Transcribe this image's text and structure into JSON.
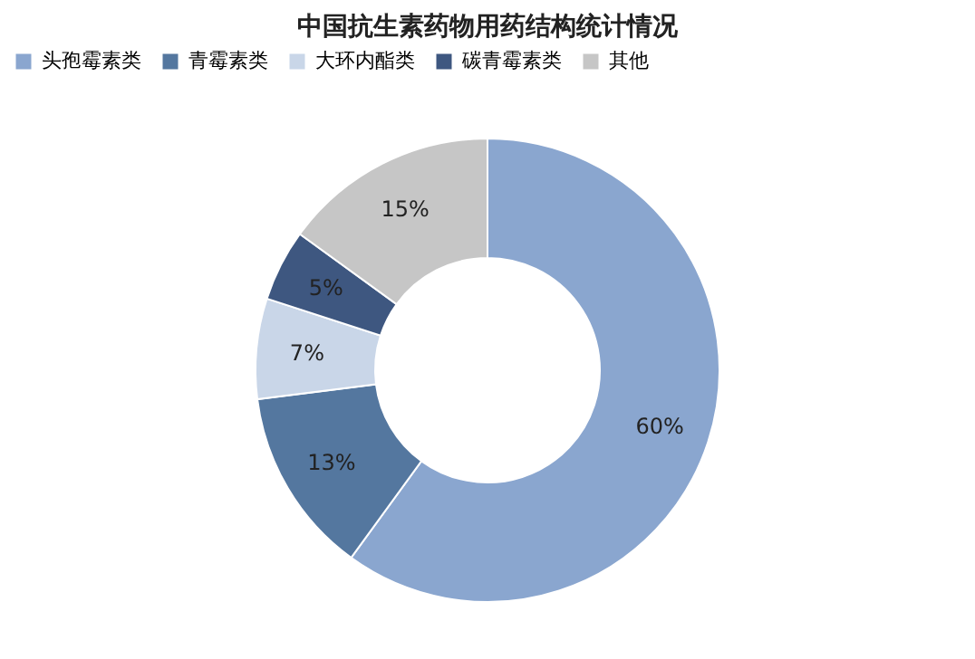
{
  "chart_data": {
    "type": "donut",
    "title": "中国抗生素药物用药结构统计情况",
    "categories": [
      "头孢霉素类",
      "青霉素类",
      "大环内酯类",
      "碳青霉素类",
      "其他"
    ],
    "values": [
      60,
      13,
      7,
      5,
      15
    ],
    "colors": [
      "#8aa6cf",
      "#54779f",
      "#c9d6e8",
      "#3e5780",
      "#c6c6c6"
    ],
    "value_labels": [
      "60%",
      "13%",
      "7%",
      "5%",
      "15%"
    ],
    "legend": "top"
  }
}
